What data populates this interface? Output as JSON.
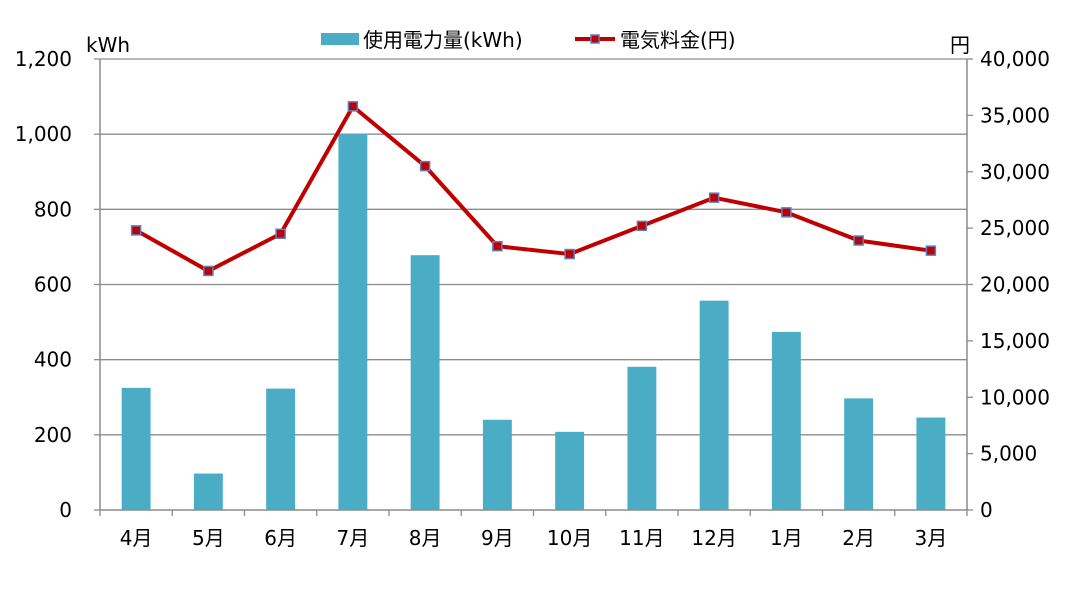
{
  "chart_data": {
    "type": "bar",
    "categories": [
      "4月",
      "5月",
      "6月",
      "7月",
      "8月",
      "9月",
      "10月",
      "11月",
      "12月",
      "1月",
      "2月",
      "3月"
    ],
    "series": [
      {
        "name": "使用電力量(kWh)",
        "type": "bar",
        "axis": "left",
        "color": "#4bacc6",
        "values": [
          325,
          97,
          323,
          1000,
          678,
          240,
          208,
          381,
          557,
          474,
          297,
          246
        ]
      },
      {
        "name": "電気料金(円)",
        "type": "line",
        "axis": "right",
        "color": "#c00000",
        "marker_color": "#5b7fbf",
        "values": [
          24800,
          21200,
          24500,
          35800,
          30500,
          23400,
          22700,
          25200,
          27700,
          26400,
          23900,
          23000
        ]
      }
    ],
    "y_left": {
      "unit": "kWh",
      "ylim": [
        0,
        1200
      ],
      "ticks": [
        0,
        200,
        400,
        600,
        800,
        1000,
        1200
      ],
      "tick_labels": [
        "0",
        "200",
        "400",
        "600",
        "800",
        "1,000",
        "1,200"
      ]
    },
    "y_right": {
      "unit": "円",
      "ylim": [
        0,
        40000
      ],
      "ticks": [
        0,
        5000,
        10000,
        15000,
        20000,
        25000,
        30000,
        35000,
        40000
      ],
      "tick_labels": [
        "0",
        "5,000",
        "10,000",
        "15,000",
        "20,000",
        "25,000",
        "30,000",
        "35,000",
        "40,000"
      ]
    },
    "grid": true,
    "legend_position": "top-center"
  }
}
